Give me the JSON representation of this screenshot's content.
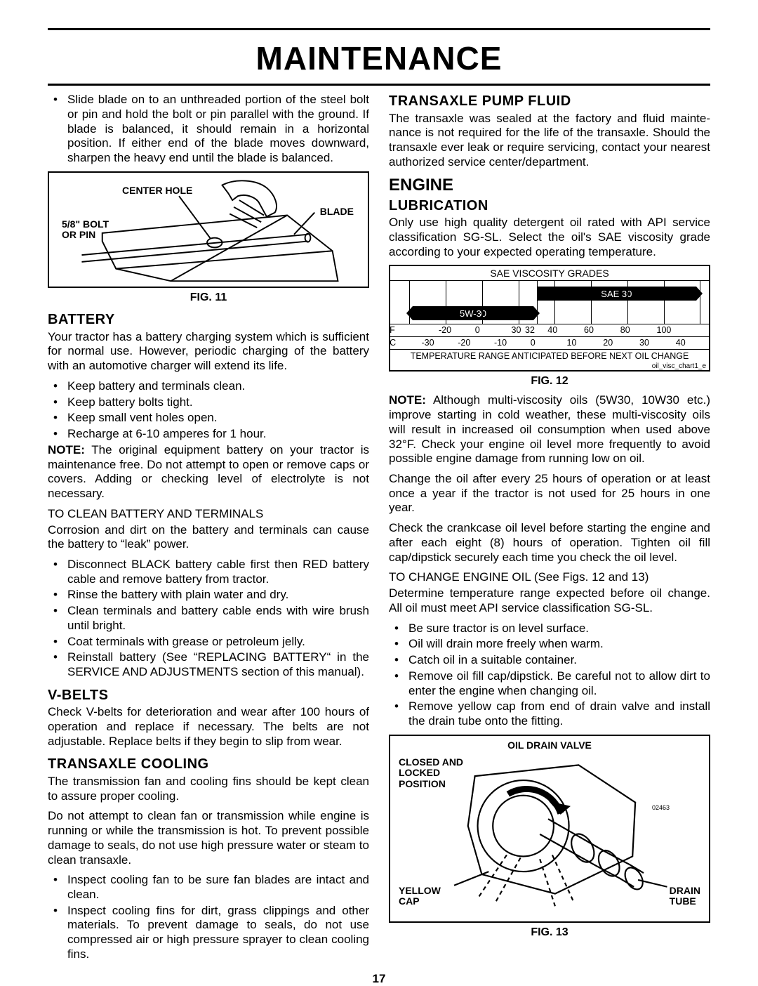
{
  "title": "MAINTENANCE",
  "page_number": "17",
  "left": {
    "intro_bullet": "Slide blade on to an unthreaded portion of the steel bolt or pin and hold the bolt or pin parallel with the ground. If blade is balanced, it should remain in a horizontal position.  If either end of the blade moves downward, sharpen the heavy end until the blade is balanced.",
    "fig11": {
      "caption": "FIG. 11",
      "labels": {
        "center_hole": "CENTER HOLE",
        "blade": "BLADE",
        "bolt": "5/8\" BOLT\nOR PIN"
      }
    },
    "battery": {
      "heading": "BATTERY",
      "p1": "Your tractor has a battery charging system which is sufficient for normal use.  However, periodic charging of the battery with an automotive charger will extend its life.",
      "bullets": [
        "Keep battery and terminals clean.",
        "Keep battery bolts tight.",
        "Keep small vent holes open.",
        "Recharge at  6-10 amperes for 1 hour."
      ],
      "note": "The original equipment battery on your tractor is maintenance free. Do not attempt to open or remove caps or covers. Adding or checking level of electrolyte is not necessary.",
      "subhead": "TO CLEAN BATTERY AND TERMINALS",
      "p2": "Corrosion and dirt on the battery and terminals can cause the battery to “leak” power.",
      "bullets2": [
        "Disconnect BLACK battery cable first  then RED  bat­tery cable and remove battery from tractor.",
        "Rinse the battery with plain water and dry.",
        "Clean terminals and battery cable ends with wire brush until bright.",
        "Coat terminals with grease or petroleum jelly.",
        "Reinstall battery (See “REPLACING BATTERY“ in the SERVICE AND ADJUSTMENTS section of this manual)."
      ]
    },
    "vbelts": {
      "heading": "V-BELTS",
      "p": "Check V-belts for deterioration and wear after 100 hours of operation and replace if necessary. The belts are not adjustable. Replace belts if they begin to slip from wear."
    },
    "cooling": {
      "heading": "TRANSAXLE COOLING",
      "p1": "The transmission fan and cooling fins should be kept clean to assure proper cooling.",
      "p2": "Do not attempt to clean fan or transmission while engine is running or while the transmission is hot. To prevent pos­sible damage to seals, do not use high pressure water or steam to clean transaxle.",
      "bullets": [
        "Inspect cooling fan to be sure fan blades are intact and clean.",
        "Inspect cooling fins for dirt, grass clippings and other materials.  To prevent damage to seals, do not use compressed air or high pressure sprayer to clean cooling fins."
      ]
    }
  },
  "right": {
    "pump": {
      "heading": "TRANSAXLE PUMP FLUID",
      "p": "The transaxle was sealed at the factory and fluid mainte­nance is not required for the life of the transaxle.  Should the transaxle ever leak or require servicing, contact your nearest authorized service center/department."
    },
    "engine": "ENGINE",
    "lubrication": {
      "heading": "LUBRICATION",
      "p": "Only use high quality detergent oil rated with API service classification SG-SL.  Select the oil's SAE viscosity grade according to your expected operating temperature."
    },
    "fig12": {
      "title": "SAE VISCOSITY GRADES",
      "bar1_label": "SAE 30",
      "bar2_label": "5W-30",
      "f_row": [
        "F",
        "-20",
        "0",
        "30",
        "32",
        "40",
        "60",
        "80",
        "100",
        ""
      ],
      "c_row": [
        "C",
        "-30",
        "-20",
        "-10",
        "0",
        "",
        "10",
        "20",
        "30",
        "40"
      ],
      "foot": "TEMPERATURE RANGE ANTICIPATED BEFORE NEXT OIL CHANGE",
      "sub": "oil_visc_chart1_e",
      "caption": "FIG. 12",
      "grid_positions_pct": [
        6,
        17.4,
        28.8,
        40.2,
        46,
        51.6,
        63,
        74.4,
        85.8,
        97.2
      ],
      "bar1": {
        "left_pct": 46,
        "right_pct": 96
      },
      "bar2": {
        "left_pct": 7,
        "right_pct": 45
      }
    },
    "note": "Although multi-viscosity oils (5W30, 10W30 etc.) improve starting in cold weather, these multi-viscosity oils will result in increased oil consumption when used above 32°F.  Check your engine oil level more frequently to avoid possible engine damage from running low on oil.",
    "p_change": "Change the oil after every 25 hours of operation or at least once a year if the tractor is not used for 25 hours in one year.",
    "p_check": "Check the crankcase oil level before starting the engine and after each eight (8) hours of operation.  Tighten oil fill cap/dipstick securely each time you check the oil level.",
    "subhead": "TO CHANGE ENGINE OIL (See Figs. 12 and 13)",
    "p_det": "Determine temperature range expected before oil change. All oil must meet API service classification SG-SL.",
    "bullets": [
      "Be sure tractor is on level surface.",
      "Oil will drain more freely when warm.",
      "Catch oil in a suitable container.",
      "Remove oil fill cap/dipstick.  Be careful not to allow dirt to enter the engine when changing oil.",
      "Remove yellow cap from end of drain valve and install the drain tube onto the fitting."
    ],
    "fig13": {
      "caption": "FIG. 13",
      "labels": {
        "title": "OIL DRAIN VALVE",
        "closed": "CLOSED AND\nLOCKED\nPOSITION",
        "yellow": "YELLOW\nCAP",
        "drain": "DRAIN\nTUBE",
        "partno": "02463"
      }
    }
  }
}
